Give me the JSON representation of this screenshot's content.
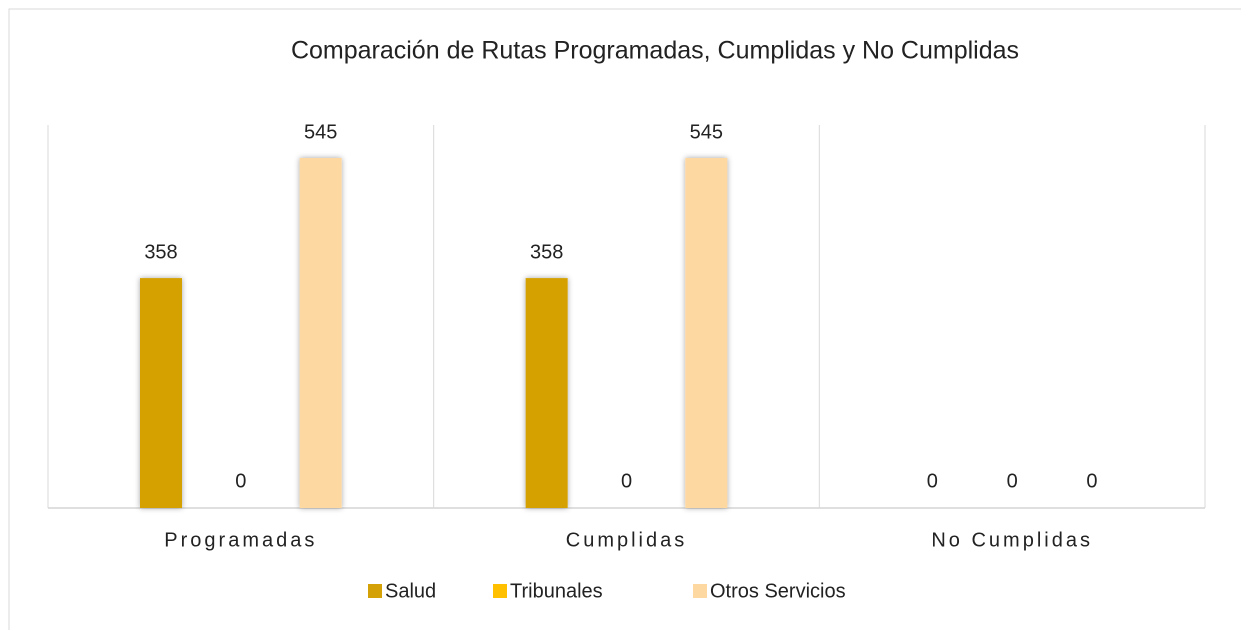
{
  "chart_data": {
    "type": "bar",
    "title": "Comparación de Rutas Programadas, Cumplidas y No Cumplidas",
    "categories": [
      "Programadas",
      "Cumplidas",
      "No Cumplidas"
    ],
    "series": [
      {
        "name": "Salud",
        "color": "#d4a106",
        "values": [
          358,
          358,
          0
        ]
      },
      {
        "name": "Tribunales",
        "color": "#ffc000",
        "values": [
          0,
          0,
          0
        ]
      },
      {
        "name": "Otros Servicios",
        "color": "#fdd9a1",
        "values": [
          545,
          545,
          0
        ]
      }
    ],
    "legend": "bottom"
  }
}
